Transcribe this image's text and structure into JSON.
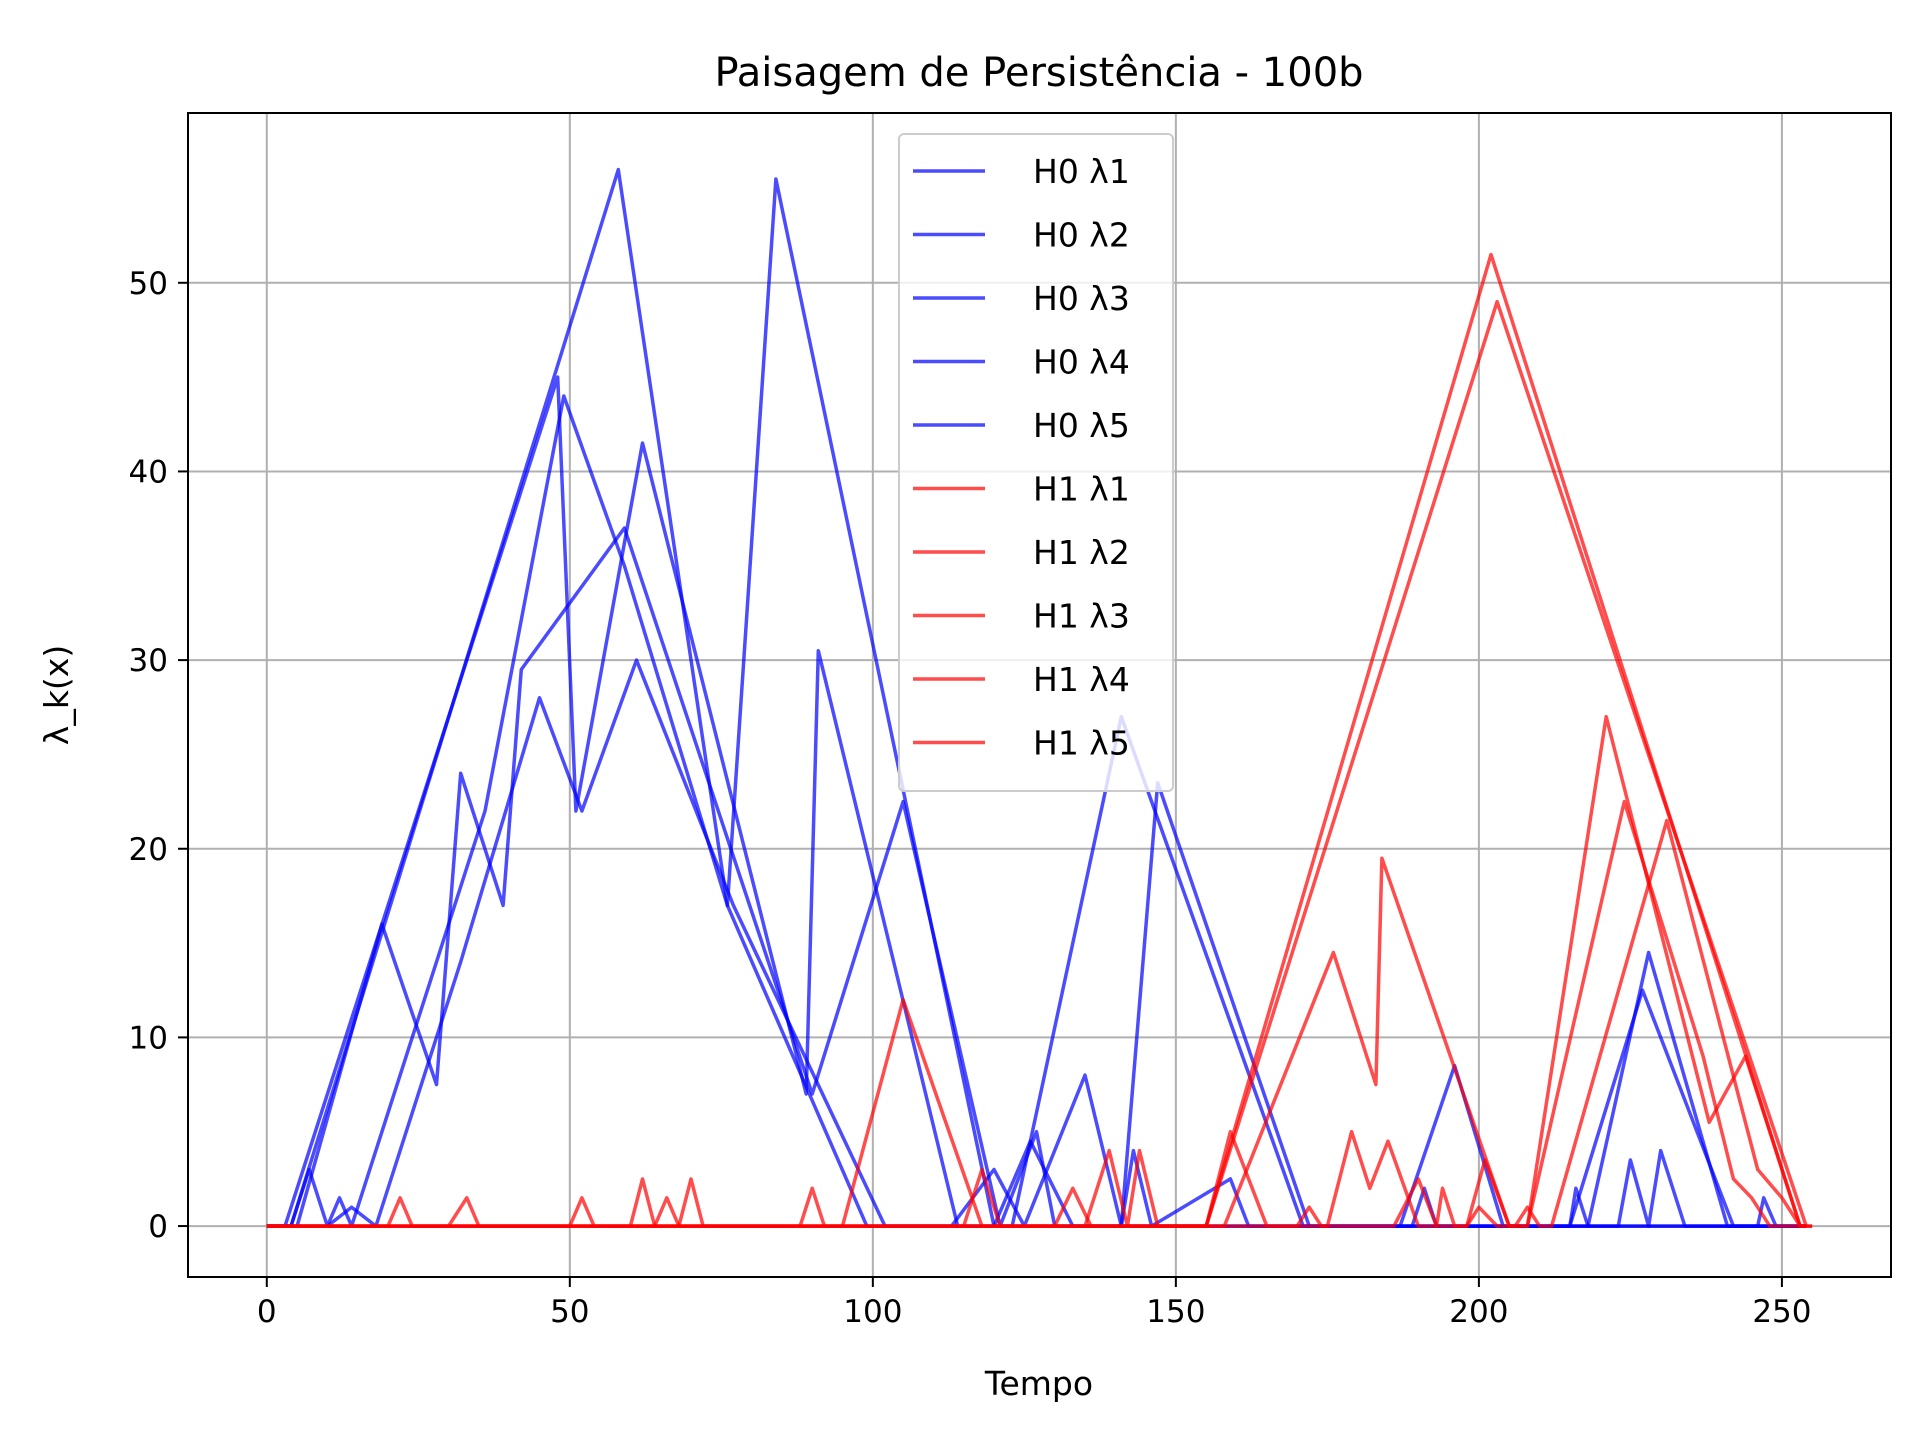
{
  "chart_data": {
    "type": "line",
    "title": "Paisagem de Persistência - 100b",
    "xlabel": "Tempo",
    "ylabel": "λ_k(x)",
    "xlim": [
      -13,
      268
    ],
    "ylim": [
      -2.7,
      59
    ],
    "xticks": [
      0,
      50,
      100,
      150,
      200,
      250
    ],
    "yticks": [
      0,
      10,
      20,
      30,
      40,
      50
    ],
    "grid": true,
    "legend_position": "upper center",
    "colors": {
      "H0": "#0000ff",
      "H1": "#ff0000"
    },
    "series": [
      {
        "name": "H0 λ1",
        "group": "H0",
        "points": [
          [
            0,
            0
          ],
          [
            4,
            0
          ],
          [
            58,
            56
          ],
          [
            76,
            17
          ],
          [
            84,
            55.5
          ],
          [
            120,
            0
          ],
          [
            150,
            0
          ],
          [
            170,
            0
          ],
          [
            187,
            0
          ],
          [
            254,
            0
          ]
        ]
      },
      {
        "name": "H0 λ2",
        "group": "H0",
        "points": [
          [
            0,
            0
          ],
          [
            3,
            0
          ],
          [
            48,
            45
          ],
          [
            51,
            22
          ],
          [
            62,
            41.5
          ],
          [
            89,
            7
          ],
          [
            91,
            30.5
          ],
          [
            114,
            0
          ],
          [
            123,
            0
          ],
          [
            141,
            27
          ],
          [
            171,
            0
          ],
          [
            187,
            0
          ],
          [
            196,
            8.5
          ],
          [
            204,
            0
          ],
          [
            254,
            0
          ]
        ]
      },
      {
        "name": "H0 λ3",
        "group": "H0",
        "points": [
          [
            0,
            0
          ],
          [
            5,
            0
          ],
          [
            19,
            16
          ],
          [
            28,
            7.5
          ],
          [
            32,
            24
          ],
          [
            39,
            17
          ],
          [
            42,
            29.5
          ],
          [
            59,
            37
          ],
          [
            90,
            7
          ],
          [
            105,
            22.5
          ],
          [
            121,
            0
          ],
          [
            127,
            5
          ],
          [
            130,
            0
          ],
          [
            141,
            0
          ],
          [
            147,
            23.5
          ],
          [
            172,
            0
          ],
          [
            218,
            0
          ],
          [
            228,
            14.5
          ],
          [
            241,
            0
          ],
          [
            254,
            0
          ]
        ]
      },
      {
        "name": "H0 λ4",
        "group": "H0",
        "points": [
          [
            0,
            0
          ],
          [
            4,
            0
          ],
          [
            7,
            3
          ],
          [
            10,
            0
          ],
          [
            12,
            1.5
          ],
          [
            14,
            0
          ],
          [
            36,
            22
          ],
          [
            49,
            44
          ],
          [
            59,
            35
          ],
          [
            76,
            17
          ],
          [
            99,
            0
          ],
          [
            113,
            0
          ],
          [
            120,
            3
          ],
          [
            125,
            0
          ],
          [
            135,
            8
          ],
          [
            141,
            0
          ],
          [
            143,
            4
          ],
          [
            146,
            0
          ],
          [
            159,
            2.5
          ],
          [
            162,
            0
          ],
          [
            194,
            0
          ],
          [
            215,
            0
          ],
          [
            227,
            12.5
          ],
          [
            242,
            0
          ],
          [
            254,
            0
          ]
        ]
      },
      {
        "name": "H0 λ5",
        "group": "H0",
        "points": [
          [
            0,
            0
          ],
          [
            10,
            0
          ],
          [
            14,
            1
          ],
          [
            18,
            0
          ],
          [
            32,
            14
          ],
          [
            45,
            28
          ],
          [
            52,
            22
          ],
          [
            61,
            30
          ],
          [
            77,
            17
          ],
          [
            102,
            0
          ],
          [
            120,
            0
          ],
          [
            126,
            4.5
          ],
          [
            133,
            0
          ],
          [
            152,
            0
          ],
          [
            163,
            0
          ],
          [
            189,
            0
          ],
          [
            191,
            2
          ],
          [
            193,
            0
          ],
          [
            215,
            0
          ],
          [
            216,
            2
          ],
          [
            218,
            0
          ],
          [
            223,
            0
          ],
          [
            225,
            3.5
          ],
          [
            228,
            0
          ],
          [
            230,
            4
          ],
          [
            234,
            0
          ],
          [
            246,
            0
          ],
          [
            247,
            1.5
          ],
          [
            249,
            0
          ],
          [
            254,
            0
          ]
        ]
      },
      {
        "name": "H1 λ1",
        "group": "H1",
        "points": [
          [
            0,
            0
          ],
          [
            20,
            0
          ],
          [
            22,
            1.5
          ],
          [
            24,
            0
          ],
          [
            30,
            0
          ],
          [
            33,
            1.5
          ],
          [
            35,
            0
          ],
          [
            60,
            0
          ],
          [
            62,
            2.5
          ],
          [
            64,
            0
          ],
          [
            68,
            0
          ],
          [
            70,
            2.5
          ],
          [
            72,
            0
          ],
          [
            95,
            0
          ],
          [
            105,
            12
          ],
          [
            118,
            0
          ],
          [
            150,
            0
          ],
          [
            155,
            0
          ],
          [
            202,
            51.5
          ],
          [
            253,
            0
          ],
          [
            255,
            0
          ]
        ]
      },
      {
        "name": "H1 λ2",
        "group": "H1",
        "points": [
          [
            0,
            0
          ],
          [
            50,
            0
          ],
          [
            52,
            1.5
          ],
          [
            54,
            0
          ],
          [
            64,
            0
          ],
          [
            66,
            1.5
          ],
          [
            68,
            0
          ],
          [
            88,
            0
          ],
          [
            90,
            2
          ],
          [
            92,
            0
          ],
          [
            120,
            0
          ],
          [
            135,
            0
          ],
          [
            139,
            4
          ],
          [
            142,
            0
          ],
          [
            144,
            4
          ],
          [
            147,
            0
          ],
          [
            155,
            0
          ],
          [
            203,
            49
          ],
          [
            254,
            0
          ]
        ]
      },
      {
        "name": "H1 λ3",
        "group": "H1",
        "points": [
          [
            0,
            0
          ],
          [
            115,
            0
          ],
          [
            118,
            3
          ],
          [
            121,
            0
          ],
          [
            130,
            0
          ],
          [
            133,
            2
          ],
          [
            136,
            0
          ],
          [
            150,
            0
          ],
          [
            158,
            0
          ],
          [
            176,
            14.5
          ],
          [
            183,
            7.5
          ],
          [
            184,
            19.5
          ],
          [
            205,
            0
          ],
          [
            208,
            0
          ],
          [
            221,
            27
          ],
          [
            238,
            5.5
          ],
          [
            244,
            9
          ],
          [
            253,
            0
          ]
        ]
      },
      {
        "name": "H1 λ4",
        "group": "H1",
        "points": [
          [
            0,
            0
          ],
          [
            155,
            0
          ],
          [
            159,
            5
          ],
          [
            165,
            0
          ],
          [
            175,
            0
          ],
          [
            179,
            5
          ],
          [
            182,
            2
          ],
          [
            185,
            4.5
          ],
          [
            190,
            0
          ],
          [
            193,
            0
          ],
          [
            194,
            2
          ],
          [
            196,
            0
          ],
          [
            198,
            0
          ],
          [
            201,
            3.5
          ],
          [
            205,
            0
          ],
          [
            208,
            0
          ],
          [
            224,
            22.5
          ],
          [
            237,
            9
          ],
          [
            242,
            2.5
          ],
          [
            245,
            1.5
          ],
          [
            248,
            0
          ],
          [
            254,
            0
          ]
        ]
      },
      {
        "name": "H1 λ5",
        "group": "H1",
        "points": [
          [
            0,
            0
          ],
          [
            170,
            0
          ],
          [
            172,
            1
          ],
          [
            174,
            0
          ],
          [
            186,
            0
          ],
          [
            190,
            2.5
          ],
          [
            193,
            0
          ],
          [
            198,
            0
          ],
          [
            200,
            1
          ],
          [
            203,
            0
          ],
          [
            206,
            0
          ],
          [
            208,
            1
          ],
          [
            210,
            0
          ],
          [
            212,
            0
          ],
          [
            231,
            21.5
          ],
          [
            246,
            3
          ],
          [
            250,
            1.5
          ],
          [
            253,
            0
          ],
          [
            255,
            0
          ]
        ]
      }
    ]
  }
}
